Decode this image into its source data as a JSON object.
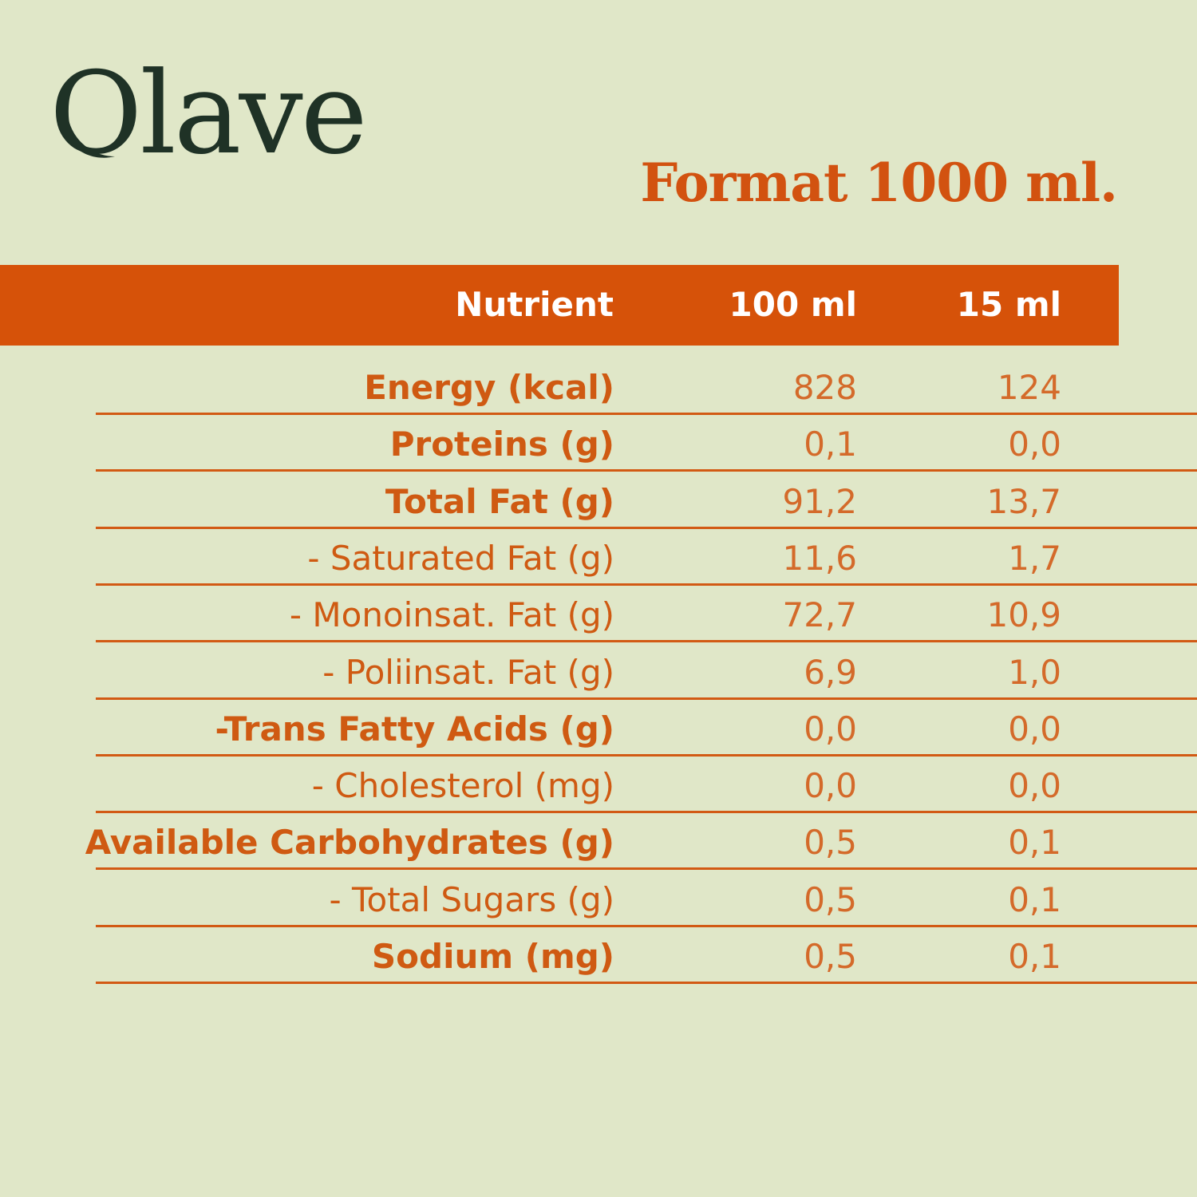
{
  "brand": {
    "name": "Olave"
  },
  "format_title": "Format 1000 ml.",
  "colors": {
    "accent": "#d65209",
    "background": "#e0e7c8",
    "logo": "#1f3226"
  },
  "table": {
    "headers": {
      "nutrient": "Nutrient",
      "per_100": "100 ml",
      "per_15": "15 ml"
    },
    "rows": [
      {
        "label": "Energy (kcal)",
        "per_100": "828",
        "per_15": "124",
        "bold": true
      },
      {
        "label": "Proteins (g)",
        "per_100": "0,1",
        "per_15": "0,0",
        "bold": true
      },
      {
        "label": "Total Fat (g)",
        "per_100": "91,2",
        "per_15": "13,7",
        "bold": true
      },
      {
        "label": "- Saturated Fat (g)",
        "per_100": "11,6",
        "per_15": "1,7",
        "bold": false
      },
      {
        "label": "- Monoinsat. Fat (g)",
        "per_100": "72,7",
        "per_15": "10,9",
        "bold": false
      },
      {
        "label": "- Poliinsat. Fat (g)",
        "per_100": "6,9",
        "per_15": "1,0",
        "bold": false
      },
      {
        "label": "-Trans Fatty Acids (g)",
        "per_100": "0,0",
        "per_15": "0,0",
        "bold": true
      },
      {
        "label": "- Cholesterol (mg)",
        "per_100": "0,0",
        "per_15": "0,0",
        "bold": false
      },
      {
        "label": "Available Carbohydrates (g)",
        "per_100": "0,5",
        "per_15": "0,1",
        "bold": true
      },
      {
        "label": "- Total Sugars (g)",
        "per_100": "0,5",
        "per_15": "0,1",
        "bold": false
      },
      {
        "label": "Sodium (mg)",
        "per_100": "0,5",
        "per_15": "0,1",
        "bold": true
      }
    ]
  }
}
